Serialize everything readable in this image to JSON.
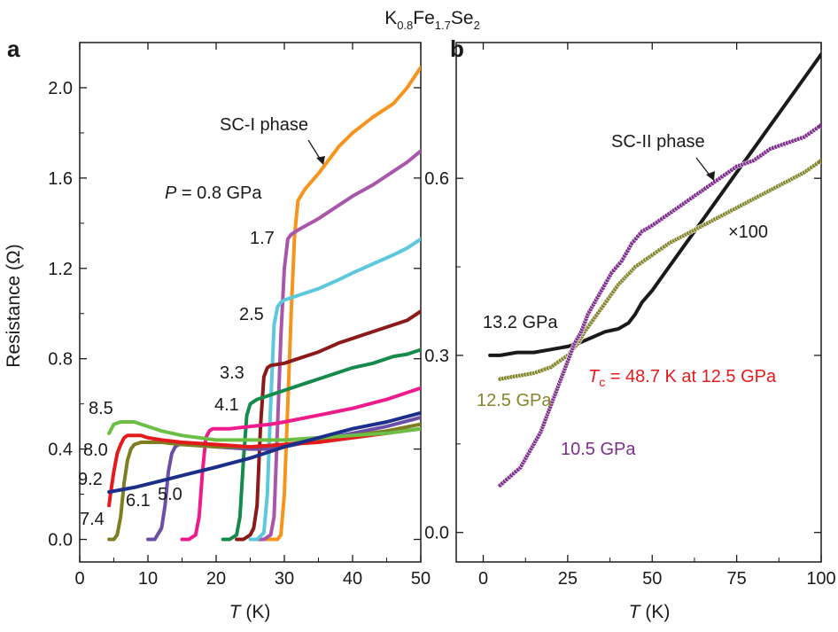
{
  "title": {
    "base1": "K",
    "sub1": "0.8",
    "base2": "Fe",
    "sub2": "1.7",
    "base3": "Se",
    "sub3": "2"
  },
  "chart_data": [
    {
      "panel": "a",
      "type": "line",
      "xlabel": {
        "italic": "T",
        "rest": " (K)"
      },
      "ylabel": "Resistance (Ω)",
      "xlim": [
        0,
        50
      ],
      "ylim": [
        -0.1,
        2.2
      ],
      "xticks": [
        0,
        10,
        20,
        30,
        40,
        50
      ],
      "yticks": [
        0.0,
        0.4,
        0.8,
        1.2,
        1.6,
        2.0
      ],
      "xtick_labels": [
        "0",
        "10",
        "20",
        "30",
        "40",
        "50"
      ],
      "ytick_labels": [
        "0.0",
        "0.4",
        "0.8",
        "1.2",
        "1.6",
        "2.0"
      ],
      "series": [
        {
          "name": "0.8",
          "color": "#f7941d",
          "x": [
            27,
            28,
            29,
            29.5,
            30,
            30.5,
            31,
            31.5,
            32,
            33,
            35,
            38,
            40,
            43,
            46,
            48,
            50
          ],
          "y": [
            0.0,
            0.0,
            0.0,
            0.02,
            0.2,
            0.6,
            1.0,
            1.35,
            1.5,
            1.55,
            1.62,
            1.74,
            1.8,
            1.87,
            1.93,
            2.0,
            2.09
          ]
        },
        {
          "name": "1.7",
          "color": "#a857a8",
          "x": [
            26,
            27,
            28,
            28.5,
            29,
            29.5,
            30,
            30.5,
            31,
            32,
            35,
            38,
            40,
            43,
            46,
            48,
            50
          ],
          "y": [
            0.0,
            0.0,
            0.02,
            0.1,
            0.5,
            0.9,
            1.2,
            1.33,
            1.35,
            1.37,
            1.42,
            1.48,
            1.52,
            1.57,
            1.63,
            1.67,
            1.72
          ]
        },
        {
          "name": "2.5",
          "color": "#5bc8dc",
          "x": [
            25,
            26,
            27,
            27.5,
            28,
            28.5,
            29,
            29.5,
            30,
            32,
            35,
            38,
            40,
            43,
            46,
            48,
            50
          ],
          "y": [
            0.0,
            0.0,
            0.03,
            0.2,
            0.6,
            0.95,
            1.03,
            1.05,
            1.06,
            1.08,
            1.11,
            1.15,
            1.18,
            1.22,
            1.26,
            1.29,
            1.33
          ]
        },
        {
          "name": "3.3",
          "color": "#8b1a1a",
          "x": [
            23,
            24,
            25,
            25.5,
            26,
            26.5,
            27,
            27.5,
            28,
            30,
            32,
            35,
            38,
            40,
            43,
            46,
            48,
            50
          ],
          "y": [
            0.0,
            0.0,
            0.02,
            0.05,
            0.15,
            0.5,
            0.72,
            0.76,
            0.77,
            0.78,
            0.8,
            0.83,
            0.87,
            0.89,
            0.92,
            0.95,
            0.97,
            1.01
          ]
        },
        {
          "name": "4.1",
          "color": "#158a4a",
          "x": [
            21,
            22,
            23,
            23.5,
            24,
            24.5,
            25,
            25.5,
            26,
            28,
            30,
            33,
            35,
            38,
            40,
            43,
            46,
            48,
            50
          ],
          "y": [
            0.0,
            0.0,
            0.02,
            0.1,
            0.35,
            0.55,
            0.6,
            0.61,
            0.62,
            0.64,
            0.66,
            0.69,
            0.71,
            0.74,
            0.76,
            0.78,
            0.81,
            0.82,
            0.84
          ]
        },
        {
          "name": "5.0",
          "color": "#ee1c8b",
          "x": [
            15,
            16,
            17,
            17.5,
            18,
            18.5,
            19,
            19.5,
            20,
            22,
            25,
            28,
            30,
            35,
            40,
            45,
            50
          ],
          "y": [
            0.0,
            0.0,
            0.02,
            0.1,
            0.3,
            0.45,
            0.48,
            0.49,
            0.49,
            0.49,
            0.5,
            0.51,
            0.52,
            0.55,
            0.58,
            0.62,
            0.67
          ]
        },
        {
          "name": "6.1",
          "color": "#6b4fa6",
          "x": [
            10,
            11,
            12,
            12.5,
            13,
            13.5,
            14,
            14.5,
            15,
            17,
            20,
            25,
            28,
            30,
            35,
            40,
            45,
            50
          ],
          "y": [
            0.0,
            0.0,
            0.05,
            0.15,
            0.3,
            0.38,
            0.41,
            0.42,
            0.42,
            0.42,
            0.41,
            0.4,
            0.4,
            0.41,
            0.44,
            0.47,
            0.5,
            0.54
          ]
        },
        {
          "name": "7.4",
          "color": "#7d7d22",
          "x": [
            4.3,
            5,
            5.5,
            6,
            6.5,
            7,
            7.5,
            8,
            9,
            10,
            12,
            15,
            20,
            25,
            30,
            35,
            40,
            45,
            50
          ],
          "y": [
            0.0,
            0.0,
            0.02,
            0.1,
            0.25,
            0.35,
            0.4,
            0.42,
            0.43,
            0.43,
            0.43,
            0.42,
            0.41,
            0.41,
            0.42,
            0.44,
            0.46,
            0.48,
            0.51
          ]
        },
        {
          "name": "8.0",
          "color": "#e41a1c",
          "x": [
            4.3,
            4.5,
            5,
            5.5,
            6,
            6.5,
            7,
            8,
            9,
            10,
            12,
            15,
            20,
            25,
            30,
            35,
            40,
            45,
            50
          ],
          "y": [
            0.15,
            0.2,
            0.3,
            0.38,
            0.42,
            0.45,
            0.46,
            0.46,
            0.46,
            0.45,
            0.44,
            0.43,
            0.42,
            0.41,
            0.42,
            0.43,
            0.45,
            0.47,
            0.49
          ]
        },
        {
          "name": "8.5",
          "color": "#6cbf45",
          "x": [
            4.3,
            5,
            6,
            7,
            8,
            9,
            10,
            12,
            15,
            20,
            25,
            30,
            35,
            40,
            45,
            50
          ],
          "y": [
            0.47,
            0.51,
            0.52,
            0.52,
            0.52,
            0.51,
            0.5,
            0.48,
            0.46,
            0.44,
            0.44,
            0.44,
            0.45,
            0.46,
            0.47,
            0.49
          ]
        },
        {
          "name": "9.2",
          "color": "#1b2f8a",
          "x": [
            4.3,
            8,
            12,
            16,
            20,
            25,
            30,
            35,
            40,
            45,
            50
          ],
          "y": [
            0.21,
            0.23,
            0.26,
            0.29,
            0.32,
            0.36,
            0.41,
            0.45,
            0.49,
            0.52,
            0.56
          ]
        }
      ],
      "annotations": {
        "sc1": "SC-I phase",
        "p_label_italic": "P",
        "p_label_rest": " = 0.8 GPa",
        "l17": "1.7",
        "l25": "2.5",
        "l33": "3.3",
        "l41": "4.1",
        "l85": "8.5",
        "l80": "8.0",
        "l92": "9.2",
        "l74": "7.4",
        "l61": "6.1",
        "l50": "5.0"
      }
    },
    {
      "panel": "b",
      "type": "scatter",
      "xlabel": {
        "italic": "T",
        "rest": " (K)"
      },
      "xlim": [
        -8,
        100
      ],
      "ylim": [
        -0.05,
        0.83
      ],
      "xticks": [
        0,
        25,
        50,
        75,
        100
      ],
      "yticks": [
        0.0,
        0.3,
        0.6
      ],
      "xtick_labels": [
        "0",
        "25",
        "50",
        "75",
        "100"
      ],
      "ytick_labels": [
        "0.0",
        "0.3",
        "0.6"
      ],
      "series": [
        {
          "name": "13.2 GPa",
          "color": "#1a1a1a",
          "style": "line",
          "x": [
            2,
            5,
            10,
            15,
            20,
            25,
            28,
            32,
            36,
            40,
            43,
            45,
            47,
            50,
            55,
            60,
            65,
            70,
            75,
            80,
            85,
            90,
            95,
            100
          ],
          "y": [
            0.3,
            0.3,
            0.305,
            0.305,
            0.31,
            0.315,
            0.32,
            0.33,
            0.34,
            0.345,
            0.355,
            0.37,
            0.39,
            0.41,
            0.45,
            0.49,
            0.53,
            0.57,
            0.61,
            0.65,
            0.69,
            0.73,
            0.77,
            0.81
          ]
        },
        {
          "name": "12.5 GPa",
          "color": "#84862d",
          "style": "scatter",
          "x": [
            5,
            10,
            15,
            20,
            25,
            28,
            30,
            35,
            40,
            45,
            50,
            55,
            60,
            65,
            70,
            75,
            80,
            85,
            90,
            95,
            100
          ],
          "y": [
            0.26,
            0.265,
            0.27,
            0.28,
            0.3,
            0.32,
            0.34,
            0.38,
            0.42,
            0.45,
            0.47,
            0.49,
            0.505,
            0.52,
            0.535,
            0.55,
            0.565,
            0.58,
            0.595,
            0.61,
            0.63
          ]
        },
        {
          "name": "10.5 GPa",
          "color": "#7e2e8c",
          "style": "scatter",
          "x": [
            5,
            7,
            9,
            11,
            13,
            15,
            17,
            19,
            21,
            23,
            25,
            27,
            29,
            31,
            33,
            35,
            38,
            41,
            44,
            47,
            50,
            55,
            60,
            65,
            70,
            75,
            80,
            85,
            90,
            95,
            100
          ],
          "y": [
            0.08,
            0.09,
            0.1,
            0.11,
            0.13,
            0.15,
            0.17,
            0.2,
            0.23,
            0.26,
            0.29,
            0.32,
            0.34,
            0.37,
            0.39,
            0.41,
            0.44,
            0.46,
            0.49,
            0.51,
            0.52,
            0.54,
            0.56,
            0.58,
            0.6,
            0.62,
            0.63,
            0.65,
            0.66,
            0.67,
            0.69
          ]
        }
      ],
      "annotations": {
        "sc2": "SC-II phase",
        "x100": "×100",
        "l132": "13.2 GPa",
        "tc_italic": "T",
        "tc_sub": "c",
        "tc_rest": " = 48.7 K at 12.5 GPa",
        "l125": "12.5 GPa",
        "l105": "10.5 GPa"
      }
    }
  ]
}
